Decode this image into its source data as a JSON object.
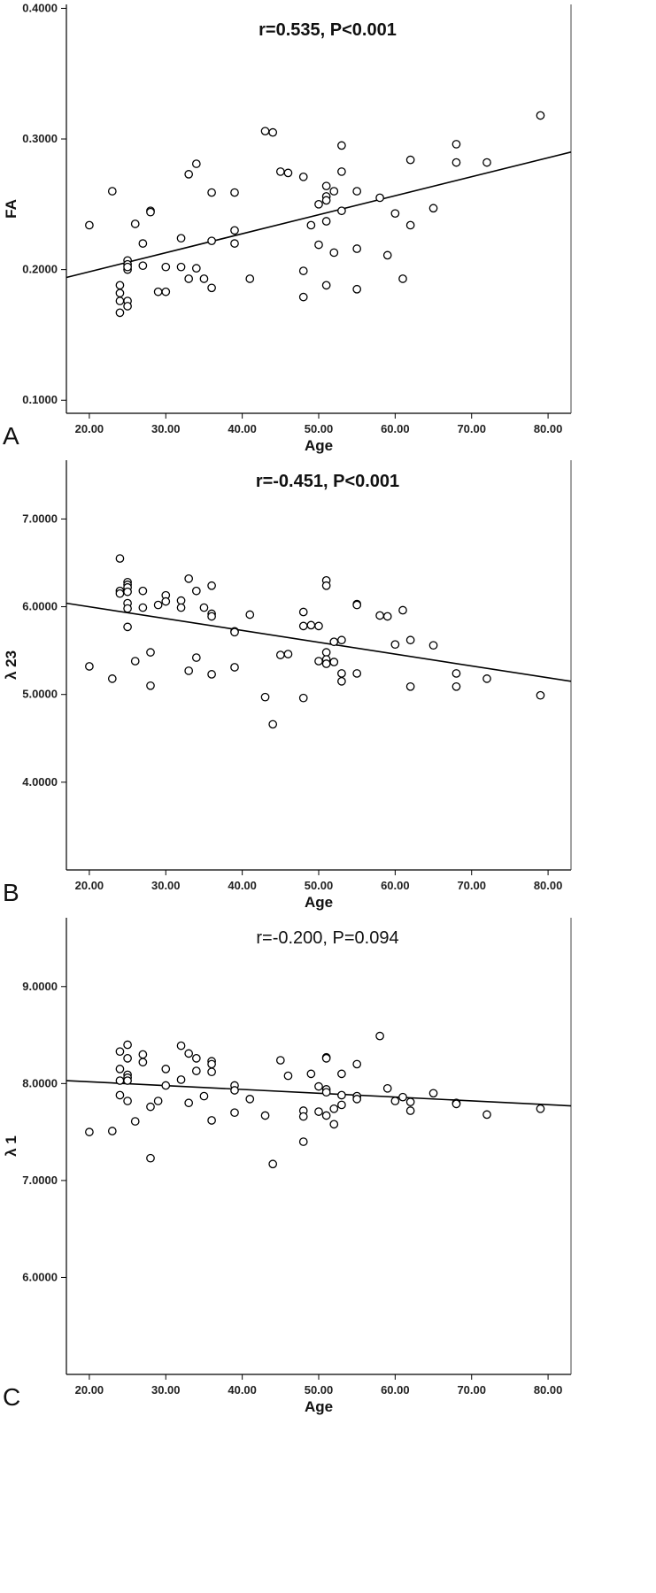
{
  "chart_data": [
    {
      "type": "scatter",
      "panel_label": "A",
      "annotation": "r=0.535, P<0.001",
      "xlabel": "Age",
      "ylabel": "FA",
      "xlim": [
        17,
        83
      ],
      "ylim": [
        0.09,
        0.403
      ],
      "x_ticks": [
        "20.00",
        "30.00",
        "40.00",
        "50.00",
        "60.00",
        "70.00",
        "80.00"
      ],
      "y_ticks": [
        "0.1000",
        "0.2000",
        "0.3000",
        "0.4000"
      ],
      "grid": false,
      "fit_line": {
        "x": [
          17,
          83
        ],
        "y": [
          0.194,
          0.29
        ]
      },
      "points": [
        {
          "x": 20,
          "y": 0.234
        },
        {
          "x": 23,
          "y": 0.26
        },
        {
          "x": 24,
          "y": 0.188
        },
        {
          "x": 24,
          "y": 0.182
        },
        {
          "x": 24,
          "y": 0.176
        },
        {
          "x": 24,
          "y": 0.167
        },
        {
          "x": 25,
          "y": 0.207
        },
        {
          "x": 25,
          "y": 0.204
        },
        {
          "x": 25,
          "y": 0.2
        },
        {
          "x": 25,
          "y": 0.202
        },
        {
          "x": 25,
          "y": 0.176
        },
        {
          "x": 25,
          "y": 0.172
        },
        {
          "x": 26,
          "y": 0.235
        },
        {
          "x": 27,
          "y": 0.22
        },
        {
          "x": 27,
          "y": 0.203
        },
        {
          "x": 28,
          "y": 0.245
        },
        {
          "x": 28,
          "y": 0.244
        },
        {
          "x": 29,
          "y": 0.183
        },
        {
          "x": 30,
          "y": 0.202
        },
        {
          "x": 30,
          "y": 0.183
        },
        {
          "x": 32,
          "y": 0.224
        },
        {
          "x": 32,
          "y": 0.202
        },
        {
          "x": 33,
          "y": 0.273
        },
        {
          "x": 33,
          "y": 0.193
        },
        {
          "x": 34,
          "y": 0.281
        },
        {
          "x": 34,
          "y": 0.201
        },
        {
          "x": 35,
          "y": 0.193
        },
        {
          "x": 36,
          "y": 0.259
        },
        {
          "x": 36,
          "y": 0.222
        },
        {
          "x": 36,
          "y": 0.186
        },
        {
          "x": 39,
          "y": 0.259
        },
        {
          "x": 39,
          "y": 0.23
        },
        {
          "x": 39,
          "y": 0.22
        },
        {
          "x": 41,
          "y": 0.193
        },
        {
          "x": 43,
          "y": 0.306
        },
        {
          "x": 44,
          "y": 0.305
        },
        {
          "x": 45,
          "y": 0.275
        },
        {
          "x": 46,
          "y": 0.274
        },
        {
          "x": 48,
          "y": 0.271
        },
        {
          "x": 48,
          "y": 0.199
        },
        {
          "x": 48,
          "y": 0.179
        },
        {
          "x": 49,
          "y": 0.234
        },
        {
          "x": 50,
          "y": 0.25
        },
        {
          "x": 50,
          "y": 0.219
        },
        {
          "x": 51,
          "y": 0.264
        },
        {
          "x": 51,
          "y": 0.256
        },
        {
          "x": 51,
          "y": 0.253
        },
        {
          "x": 51,
          "y": 0.237
        },
        {
          "x": 51,
          "y": 0.188
        },
        {
          "x": 52,
          "y": 0.26
        },
        {
          "x": 52,
          "y": 0.213
        },
        {
          "x": 53,
          "y": 0.295
        },
        {
          "x": 53,
          "y": 0.275
        },
        {
          "x": 53,
          "y": 0.245
        },
        {
          "x": 55,
          "y": 0.26
        },
        {
          "x": 55,
          "y": 0.216
        },
        {
          "x": 55,
          "y": 0.185
        },
        {
          "x": 58,
          "y": 0.255
        },
        {
          "x": 59,
          "y": 0.211
        },
        {
          "x": 60,
          "y": 0.243
        },
        {
          "x": 61,
          "y": 0.193
        },
        {
          "x": 62,
          "y": 0.284
        },
        {
          "x": 62,
          "y": 0.234
        },
        {
          "x": 65,
          "y": 0.247
        },
        {
          "x": 68,
          "y": 0.296
        },
        {
          "x": 68,
          "y": 0.282
        },
        {
          "x": 72,
          "y": 0.282
        },
        {
          "x": 79,
          "y": 0.318
        }
      ]
    },
    {
      "type": "scatter",
      "panel_label": "B",
      "annotation": "r=-0.451, P<0.001",
      "xlabel": "Age",
      "ylabel": "λ 23",
      "xlim": [
        17,
        83
      ],
      "ylim": [
        3.0,
        7.67
      ],
      "x_ticks": [
        "20.00",
        "30.00",
        "40.00",
        "50.00",
        "60.00",
        "70.00",
        "80.00"
      ],
      "y_ticks": [
        "4.0000",
        "5.0000",
        "6.0000",
        "7.0000"
      ],
      "grid": false,
      "fit_line": {
        "x": [
          17,
          83
        ],
        "y": [
          6.04,
          5.15
        ]
      },
      "points": [
        {
          "x": 20,
          "y": 5.32
        },
        {
          "x": 23,
          "y": 5.18
        },
        {
          "x": 24,
          "y": 6.55
        },
        {
          "x": 24,
          "y": 6.18
        },
        {
          "x": 24,
          "y": 6.15
        },
        {
          "x": 25,
          "y": 6.28
        },
        {
          "x": 25,
          "y": 6.25
        },
        {
          "x": 25,
          "y": 6.22
        },
        {
          "x": 25,
          "y": 6.17
        },
        {
          "x": 25,
          "y": 6.04
        },
        {
          "x": 25,
          "y": 5.98
        },
        {
          "x": 25,
          "y": 5.77
        },
        {
          "x": 26,
          "y": 5.38
        },
        {
          "x": 27,
          "y": 6.18
        },
        {
          "x": 27,
          "y": 5.99
        },
        {
          "x": 28,
          "y": 5.48
        },
        {
          "x": 28,
          "y": 5.1
        },
        {
          "x": 29,
          "y": 6.02
        },
        {
          "x": 30,
          "y": 6.13
        },
        {
          "x": 30,
          "y": 6.06
        },
        {
          "x": 32,
          "y": 6.07
        },
        {
          "x": 32,
          "y": 5.99
        },
        {
          "x": 33,
          "y": 6.32
        },
        {
          "x": 33,
          "y": 5.27
        },
        {
          "x": 34,
          "y": 6.18
        },
        {
          "x": 34,
          "y": 5.42
        },
        {
          "x": 35,
          "y": 5.99
        },
        {
          "x": 36,
          "y": 6.24
        },
        {
          "x": 36,
          "y": 5.92
        },
        {
          "x": 36,
          "y": 5.89
        },
        {
          "x": 36,
          "y": 5.23
        },
        {
          "x": 39,
          "y": 5.72
        },
        {
          "x": 39,
          "y": 5.71
        },
        {
          "x": 39,
          "y": 5.31
        },
        {
          "x": 41,
          "y": 5.91
        },
        {
          "x": 43,
          "y": 4.97
        },
        {
          "x": 44,
          "y": 4.66
        },
        {
          "x": 45,
          "y": 5.45
        },
        {
          "x": 46,
          "y": 5.46
        },
        {
          "x": 48,
          "y": 5.94
        },
        {
          "x": 48,
          "y": 5.78
        },
        {
          "x": 48,
          "y": 4.96
        },
        {
          "x": 49,
          "y": 5.79
        },
        {
          "x": 50,
          "y": 5.78
        },
        {
          "x": 50,
          "y": 5.38
        },
        {
          "x": 51,
          "y": 6.3
        },
        {
          "x": 51,
          "y": 6.24
        },
        {
          "x": 51,
          "y": 5.48
        },
        {
          "x": 51,
          "y": 5.4
        },
        {
          "x": 51,
          "y": 5.35
        },
        {
          "x": 52,
          "y": 5.6
        },
        {
          "x": 52,
          "y": 5.37
        },
        {
          "x": 53,
          "y": 5.62
        },
        {
          "x": 53,
          "y": 5.24
        },
        {
          "x": 53,
          "y": 5.15
        },
        {
          "x": 55,
          "y": 6.03
        },
        {
          "x": 55,
          "y": 6.02
        },
        {
          "x": 55,
          "y": 5.24
        },
        {
          "x": 58,
          "y": 5.9
        },
        {
          "x": 59,
          "y": 5.89
        },
        {
          "x": 60,
          "y": 5.57
        },
        {
          "x": 61,
          "y": 5.96
        },
        {
          "x": 62,
          "y": 5.62
        },
        {
          "x": 62,
          "y": 5.09
        },
        {
          "x": 65,
          "y": 5.56
        },
        {
          "x": 68,
          "y": 5.24
        },
        {
          "x": 68,
          "y": 5.09
        },
        {
          "x": 72,
          "y": 5.18
        },
        {
          "x": 79,
          "y": 4.99
        }
      ]
    },
    {
      "type": "scatter",
      "panel_label": "C",
      "annotation": "r=-0.200, P=0.094",
      "xlabel": "Age",
      "ylabel": "λ 1",
      "xlim": [
        17,
        83
      ],
      "ylim": [
        5.0,
        9.71
      ],
      "x_ticks": [
        "20.00",
        "30.00",
        "40.00",
        "50.00",
        "60.00",
        "70.00",
        "80.00"
      ],
      "y_ticks": [
        "6.0000",
        "7.0000",
        "8.0000",
        "9.0000"
      ],
      "grid": false,
      "fit_line": {
        "x": [
          17,
          83
        ],
        "y": [
          8.03,
          7.77
        ]
      },
      "points": [
        {
          "x": 20,
          "y": 7.5
        },
        {
          "x": 23,
          "y": 7.51
        },
        {
          "x": 24,
          "y": 8.33
        },
        {
          "x": 24,
          "y": 8.15
        },
        {
          "x": 24,
          "y": 8.03
        },
        {
          "x": 24,
          "y": 7.88
        },
        {
          "x": 25,
          "y": 8.4
        },
        {
          "x": 25,
          "y": 8.26
        },
        {
          "x": 25,
          "y": 8.09
        },
        {
          "x": 25,
          "y": 8.06
        },
        {
          "x": 25,
          "y": 8.03
        },
        {
          "x": 25,
          "y": 7.82
        },
        {
          "x": 26,
          "y": 7.61
        },
        {
          "x": 27,
          "y": 8.3
        },
        {
          "x": 27,
          "y": 8.22
        },
        {
          "x": 28,
          "y": 7.76
        },
        {
          "x": 28,
          "y": 7.23
        },
        {
          "x": 29,
          "y": 7.82
        },
        {
          "x": 30,
          "y": 8.15
        },
        {
          "x": 30,
          "y": 7.98
        },
        {
          "x": 32,
          "y": 8.39
        },
        {
          "x": 32,
          "y": 8.04
        },
        {
          "x": 33,
          "y": 8.31
        },
        {
          "x": 33,
          "y": 7.8
        },
        {
          "x": 34,
          "y": 8.26
        },
        {
          "x": 34,
          "y": 8.13
        },
        {
          "x": 35,
          "y": 7.87
        },
        {
          "x": 36,
          "y": 8.23
        },
        {
          "x": 36,
          "y": 8.2
        },
        {
          "x": 36,
          "y": 8.12
        },
        {
          "x": 36,
          "y": 7.62
        },
        {
          "x": 39,
          "y": 7.98
        },
        {
          "x": 39,
          "y": 7.93
        },
        {
          "x": 39,
          "y": 7.7
        },
        {
          "x": 41,
          "y": 7.84
        },
        {
          "x": 43,
          "y": 7.67
        },
        {
          "x": 44,
          "y": 7.17
        },
        {
          "x": 45,
          "y": 8.24
        },
        {
          "x": 46,
          "y": 8.08
        },
        {
          "x": 48,
          "y": 7.72
        },
        {
          "x": 48,
          "y": 7.66
        },
        {
          "x": 48,
          "y": 7.4
        },
        {
          "x": 49,
          "y": 8.1
        },
        {
          "x": 50,
          "y": 7.97
        },
        {
          "x": 50,
          "y": 7.71
        },
        {
          "x": 51,
          "y": 8.27
        },
        {
          "x": 51,
          "y": 8.26
        },
        {
          "x": 51,
          "y": 7.94
        },
        {
          "x": 51,
          "y": 7.91
        },
        {
          "x": 51,
          "y": 7.67
        },
        {
          "x": 52,
          "y": 7.74
        },
        {
          "x": 52,
          "y": 7.58
        },
        {
          "x": 53,
          "y": 8.1
        },
        {
          "x": 53,
          "y": 7.88
        },
        {
          "x": 53,
          "y": 7.78
        },
        {
          "x": 55,
          "y": 8.2
        },
        {
          "x": 55,
          "y": 7.87
        },
        {
          "x": 55,
          "y": 7.84
        },
        {
          "x": 58,
          "y": 8.49
        },
        {
          "x": 59,
          "y": 7.95
        },
        {
          "x": 60,
          "y": 7.82
        },
        {
          "x": 61,
          "y": 7.86
        },
        {
          "x": 62,
          "y": 7.81
        },
        {
          "x": 62,
          "y": 7.72
        },
        {
          "x": 65,
          "y": 7.9
        },
        {
          "x": 68,
          "y": 7.8
        },
        {
          "x": 68,
          "y": 7.79
        },
        {
          "x": 72,
          "y": 7.68
        },
        {
          "x": 79,
          "y": 7.74
        }
      ]
    }
  ]
}
